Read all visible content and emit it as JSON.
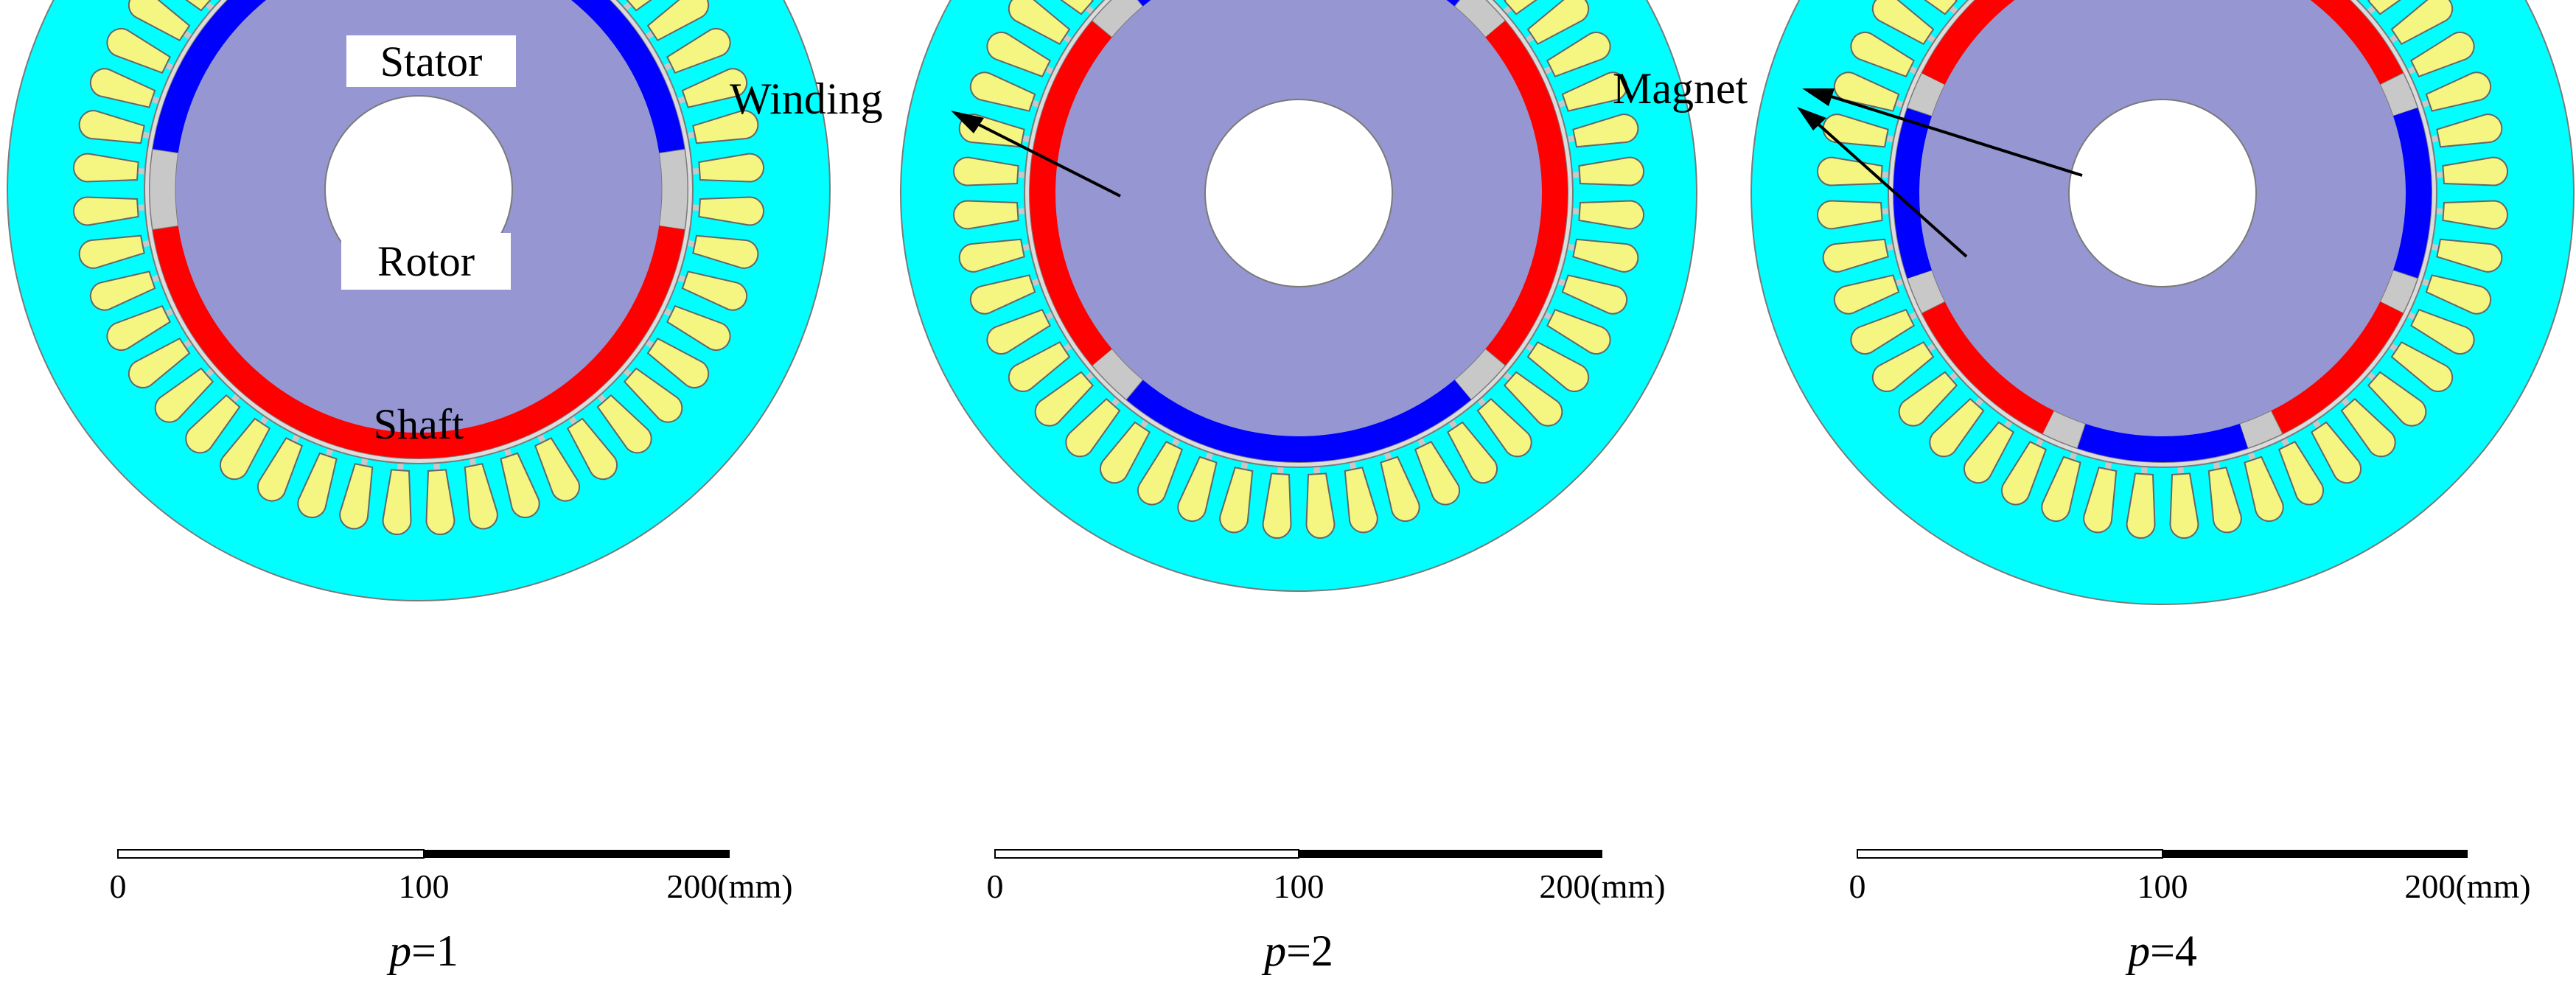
{
  "figure": {
    "labels": {
      "stator": "Stator",
      "rotor": "Rotor",
      "shaft": "Shaft",
      "winding": "Winding",
      "magnet": "Magnet"
    },
    "colors": {
      "stator": "#00ffff",
      "rotor": "#9696d2",
      "magnet_north": "#ff0000",
      "magnet_south": "#0000ff",
      "winding": "#f5f582",
      "spacer": "#c8c8c8",
      "shaft": "#ffffff",
      "outline": "#7a7a7a",
      "scale_bar": "#000000"
    },
    "slots_per_machine": 48,
    "machines": [
      {
        "pole_pairs": 1,
        "caption_var": "p",
        "caption_value": "=1"
      },
      {
        "pole_pairs": 2,
        "caption_var": "p",
        "caption_value": "=2"
      },
      {
        "pole_pairs": 4,
        "caption_var": "p",
        "caption_value": "=4"
      }
    ],
    "scale_bar": {
      "tick_start": "0",
      "tick_mid": "100",
      "tick_end": "200",
      "unit": "(mm)"
    }
  }
}
